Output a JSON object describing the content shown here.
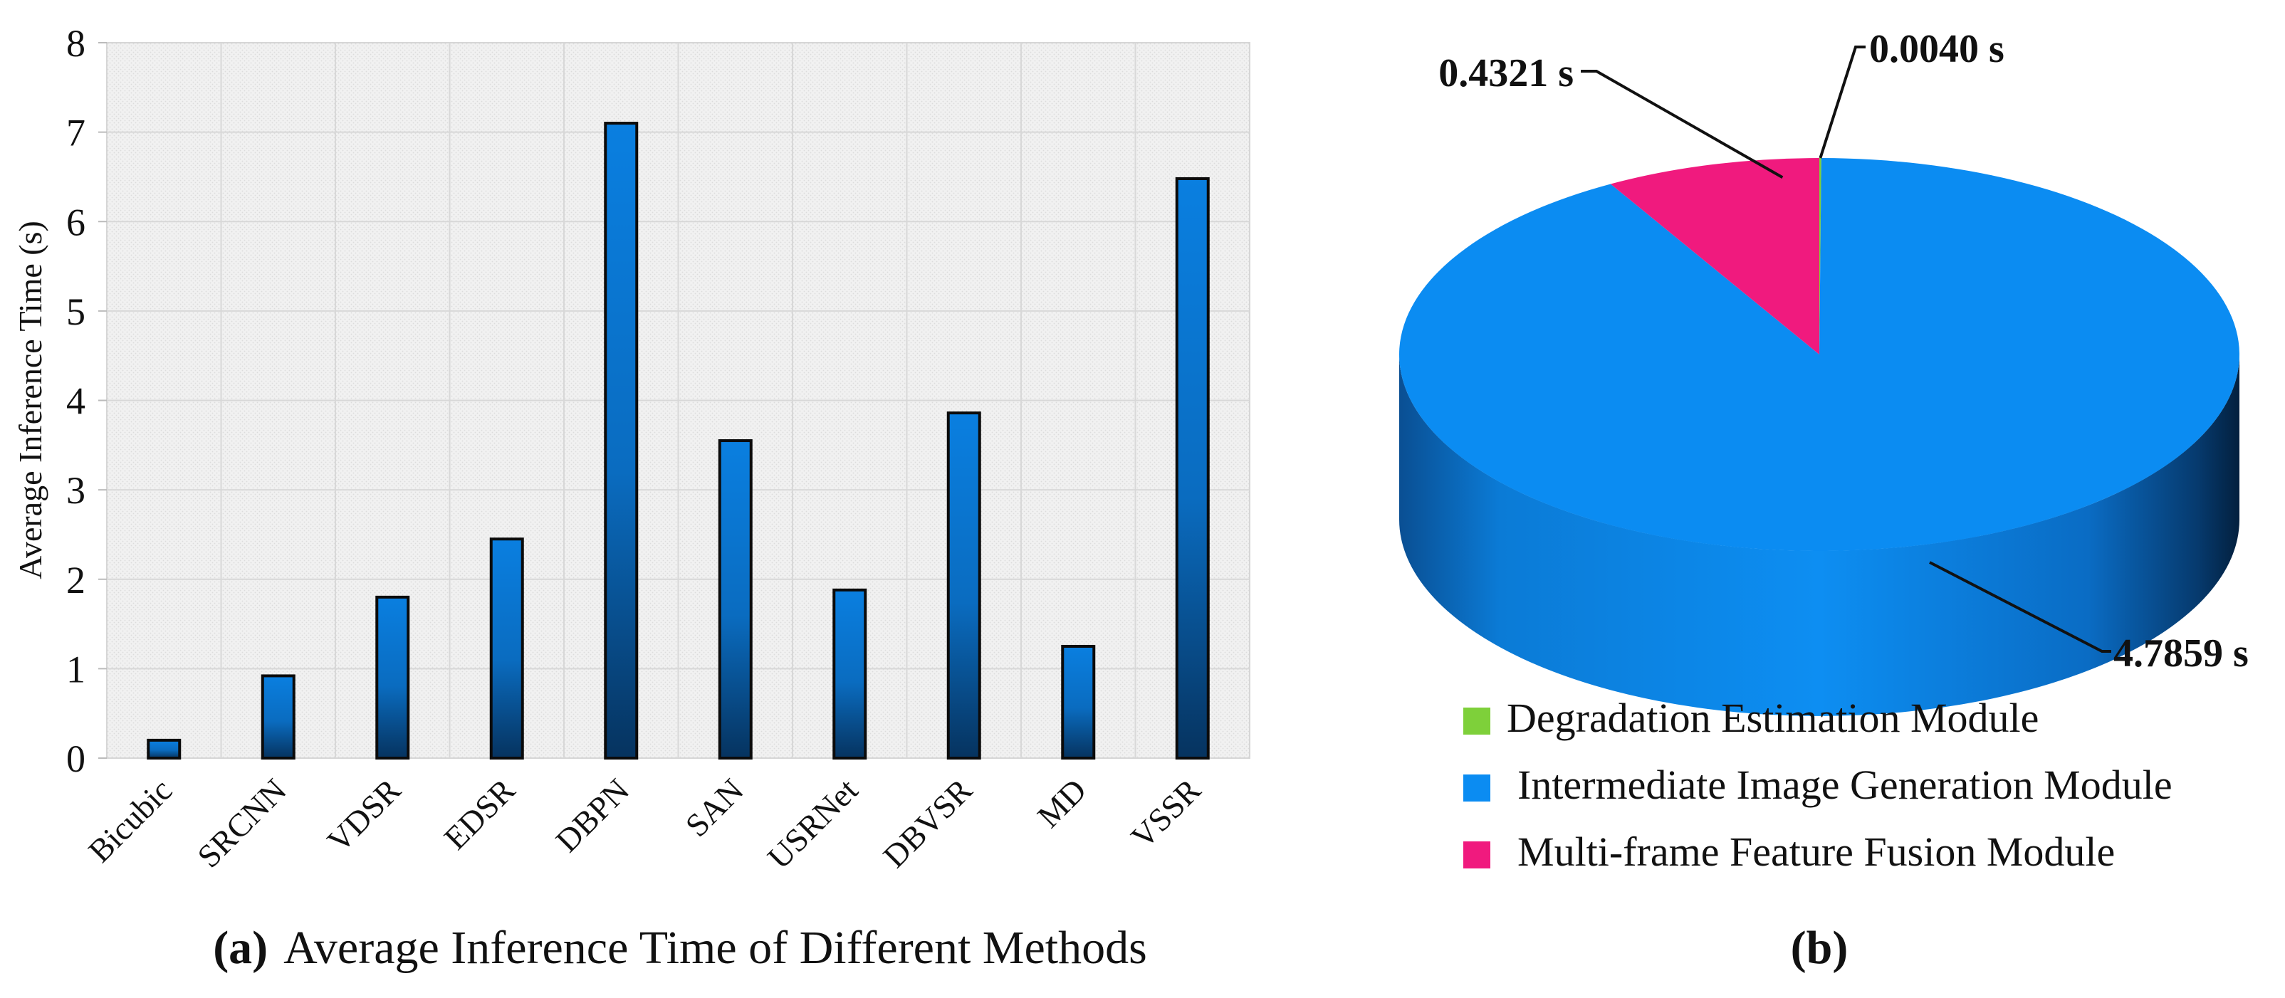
{
  "chart_data": [
    {
      "type": "bar",
      "caption_tag": "a",
      "caption_text": "Average Inference Time of Different Methods",
      "categories": [
        "Bicubic",
        "SRCNN",
        "VDSR",
        "EDSR",
        "DBPN",
        "SAN",
        "USRNet",
        "DBVSR",
        "MD",
        "VSSR"
      ],
      "values": [
        0.2,
        0.92,
        1.8,
        2.45,
        7.1,
        3.55,
        1.88,
        3.86,
        1.25,
        6.48
      ],
      "ylabel": "Average Inference Time (s)",
      "xlabel": "",
      "ylim": [
        0,
        8
      ],
      "yticks": [
        "0",
        "1",
        "2",
        "3",
        "4",
        "5",
        "6",
        "7",
        "8"
      ],
      "grid": true,
      "bar_color": "#0a78d6"
    },
    {
      "type": "pie",
      "style": "3d",
      "caption_tag": "b",
      "slices": [
        {
          "name": "Degradation Estimation Module",
          "value": 0.004,
          "label": "0.0040 s",
          "color": "#7ed03a"
        },
        {
          "name": "Intermediate Image Generation Module",
          "value": 4.7859,
          "label": "4.7859 s",
          "color": "#0b8cf2"
        },
        {
          "name": "Multi-frame Feature Fusion Module",
          "value": 0.4321,
          "label": "0.4321 s",
          "color": "#f01a7e"
        }
      ],
      "legend_position": "bottom"
    }
  ]
}
